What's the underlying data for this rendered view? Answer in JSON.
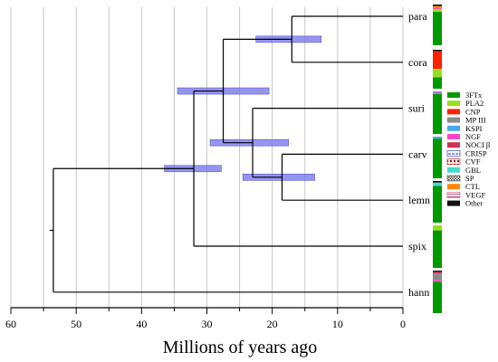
{
  "chart_data": {
    "type": "tree",
    "xlabel": "Millions of years ago",
    "xlim": [
      60,
      0
    ],
    "xticks": [
      60,
      50,
      40,
      30,
      20,
      10,
      0
    ],
    "grid": true,
    "taxa": [
      "para",
      "cora",
      "suri",
      "carv",
      "lemn",
      "spix",
      "hann"
    ],
    "root_age": 53.5,
    "nodes": [
      {
        "id": "root",
        "age": 53.5,
        "children": [
          "n_spix",
          "hann"
        ]
      },
      {
        "id": "n_spix",
        "age": 32.0,
        "children": [
          "n_pc",
          "spix"
        ],
        "ci": [
          36.5,
          27.8
        ]
      },
      {
        "id": "n_pc",
        "age": 27.5,
        "children": [
          "n_para_cora",
          "n_suri"
        ],
        "ci": [
          34.5,
          20.5
        ]
      },
      {
        "id": "n_para_cora",
        "age": 17.0,
        "children": [
          "para",
          "cora"
        ],
        "ci": [
          22.5,
          12.5
        ]
      },
      {
        "id": "n_suri",
        "age": 23.0,
        "children": [
          "suri",
          "n_carv"
        ],
        "ci": [
          29.5,
          17.5
        ]
      },
      {
        "id": "n_carv",
        "age": 18.5,
        "children": [
          "carv",
          "lemn"
        ],
        "ci": [
          24.5,
          13.5
        ]
      }
    ],
    "legend": [
      {
        "label": "3FTx",
        "color": "#009900",
        "pattern": "solid"
      },
      {
        "label": "PLA2",
        "color": "#99dd22",
        "pattern": "solid"
      },
      {
        "label": "CNP",
        "color": "#ff2200",
        "pattern": "solid"
      },
      {
        "label": "MP III",
        "color": "#8a8a8a",
        "pattern": "solid"
      },
      {
        "label": "KSPI",
        "color": "#44aaee",
        "pattern": "solid"
      },
      {
        "label": "NGF",
        "color": "#ff44cc",
        "pattern": "solid"
      },
      {
        "label": "NOCI β",
        "color": "#cc3355",
        "pattern": "solid"
      },
      {
        "label": "CRISP",
        "color": "#2233bb",
        "pattern": "dashed"
      },
      {
        "label": "CVF",
        "color": "#aa1111",
        "pattern": "dots"
      },
      {
        "label": "GBL",
        "color": "#44ddcc",
        "pattern": "solid"
      },
      {
        "label": "SP",
        "color": "#444444",
        "pattern": "checker"
      },
      {
        "label": "CTL",
        "color": "#ff8800",
        "pattern": "solid"
      },
      {
        "label": "VEGF",
        "color": "#bb5577",
        "pattern": "hatch"
      },
      {
        "label": "Other",
        "color": "#111111",
        "pattern": "solid"
      }
    ],
    "composition": {
      "para": [
        [
          "Other",
          0.04
        ],
        [
          "CTL",
          0.04
        ],
        [
          "NGF",
          0.03
        ],
        [
          "PLA2",
          0.07
        ],
        [
          "3FTx",
          0.82
        ]
      ],
      "cora": [
        [
          "Other",
          0.04
        ],
        [
          "CNP",
          0.45
        ],
        [
          "PLA2",
          0.22
        ],
        [
          "3FTx",
          0.29
        ]
      ],
      "suri": [
        [
          "NGF",
          0.03
        ],
        [
          "KSPI",
          0.03
        ],
        [
          "3FTx",
          0.94
        ]
      ],
      "carv": [
        [
          "KSPI",
          0.05
        ],
        [
          "3FTx",
          0.95
        ]
      ],
      "lemn": [
        [
          "Other",
          0.04
        ],
        [
          "GBL",
          0.08
        ],
        [
          "3FTx",
          0.88
        ]
      ],
      "spix": [
        [
          "PLA2",
          0.12
        ],
        [
          "3FTx",
          0.88
        ]
      ],
      "hann": [
        [
          "Other",
          0.03
        ],
        [
          "NOCI β",
          0.04
        ],
        [
          "MP III",
          0.15
        ],
        [
          "NGF",
          0.04
        ],
        [
          "3FTx",
          0.74
        ]
      ]
    }
  }
}
